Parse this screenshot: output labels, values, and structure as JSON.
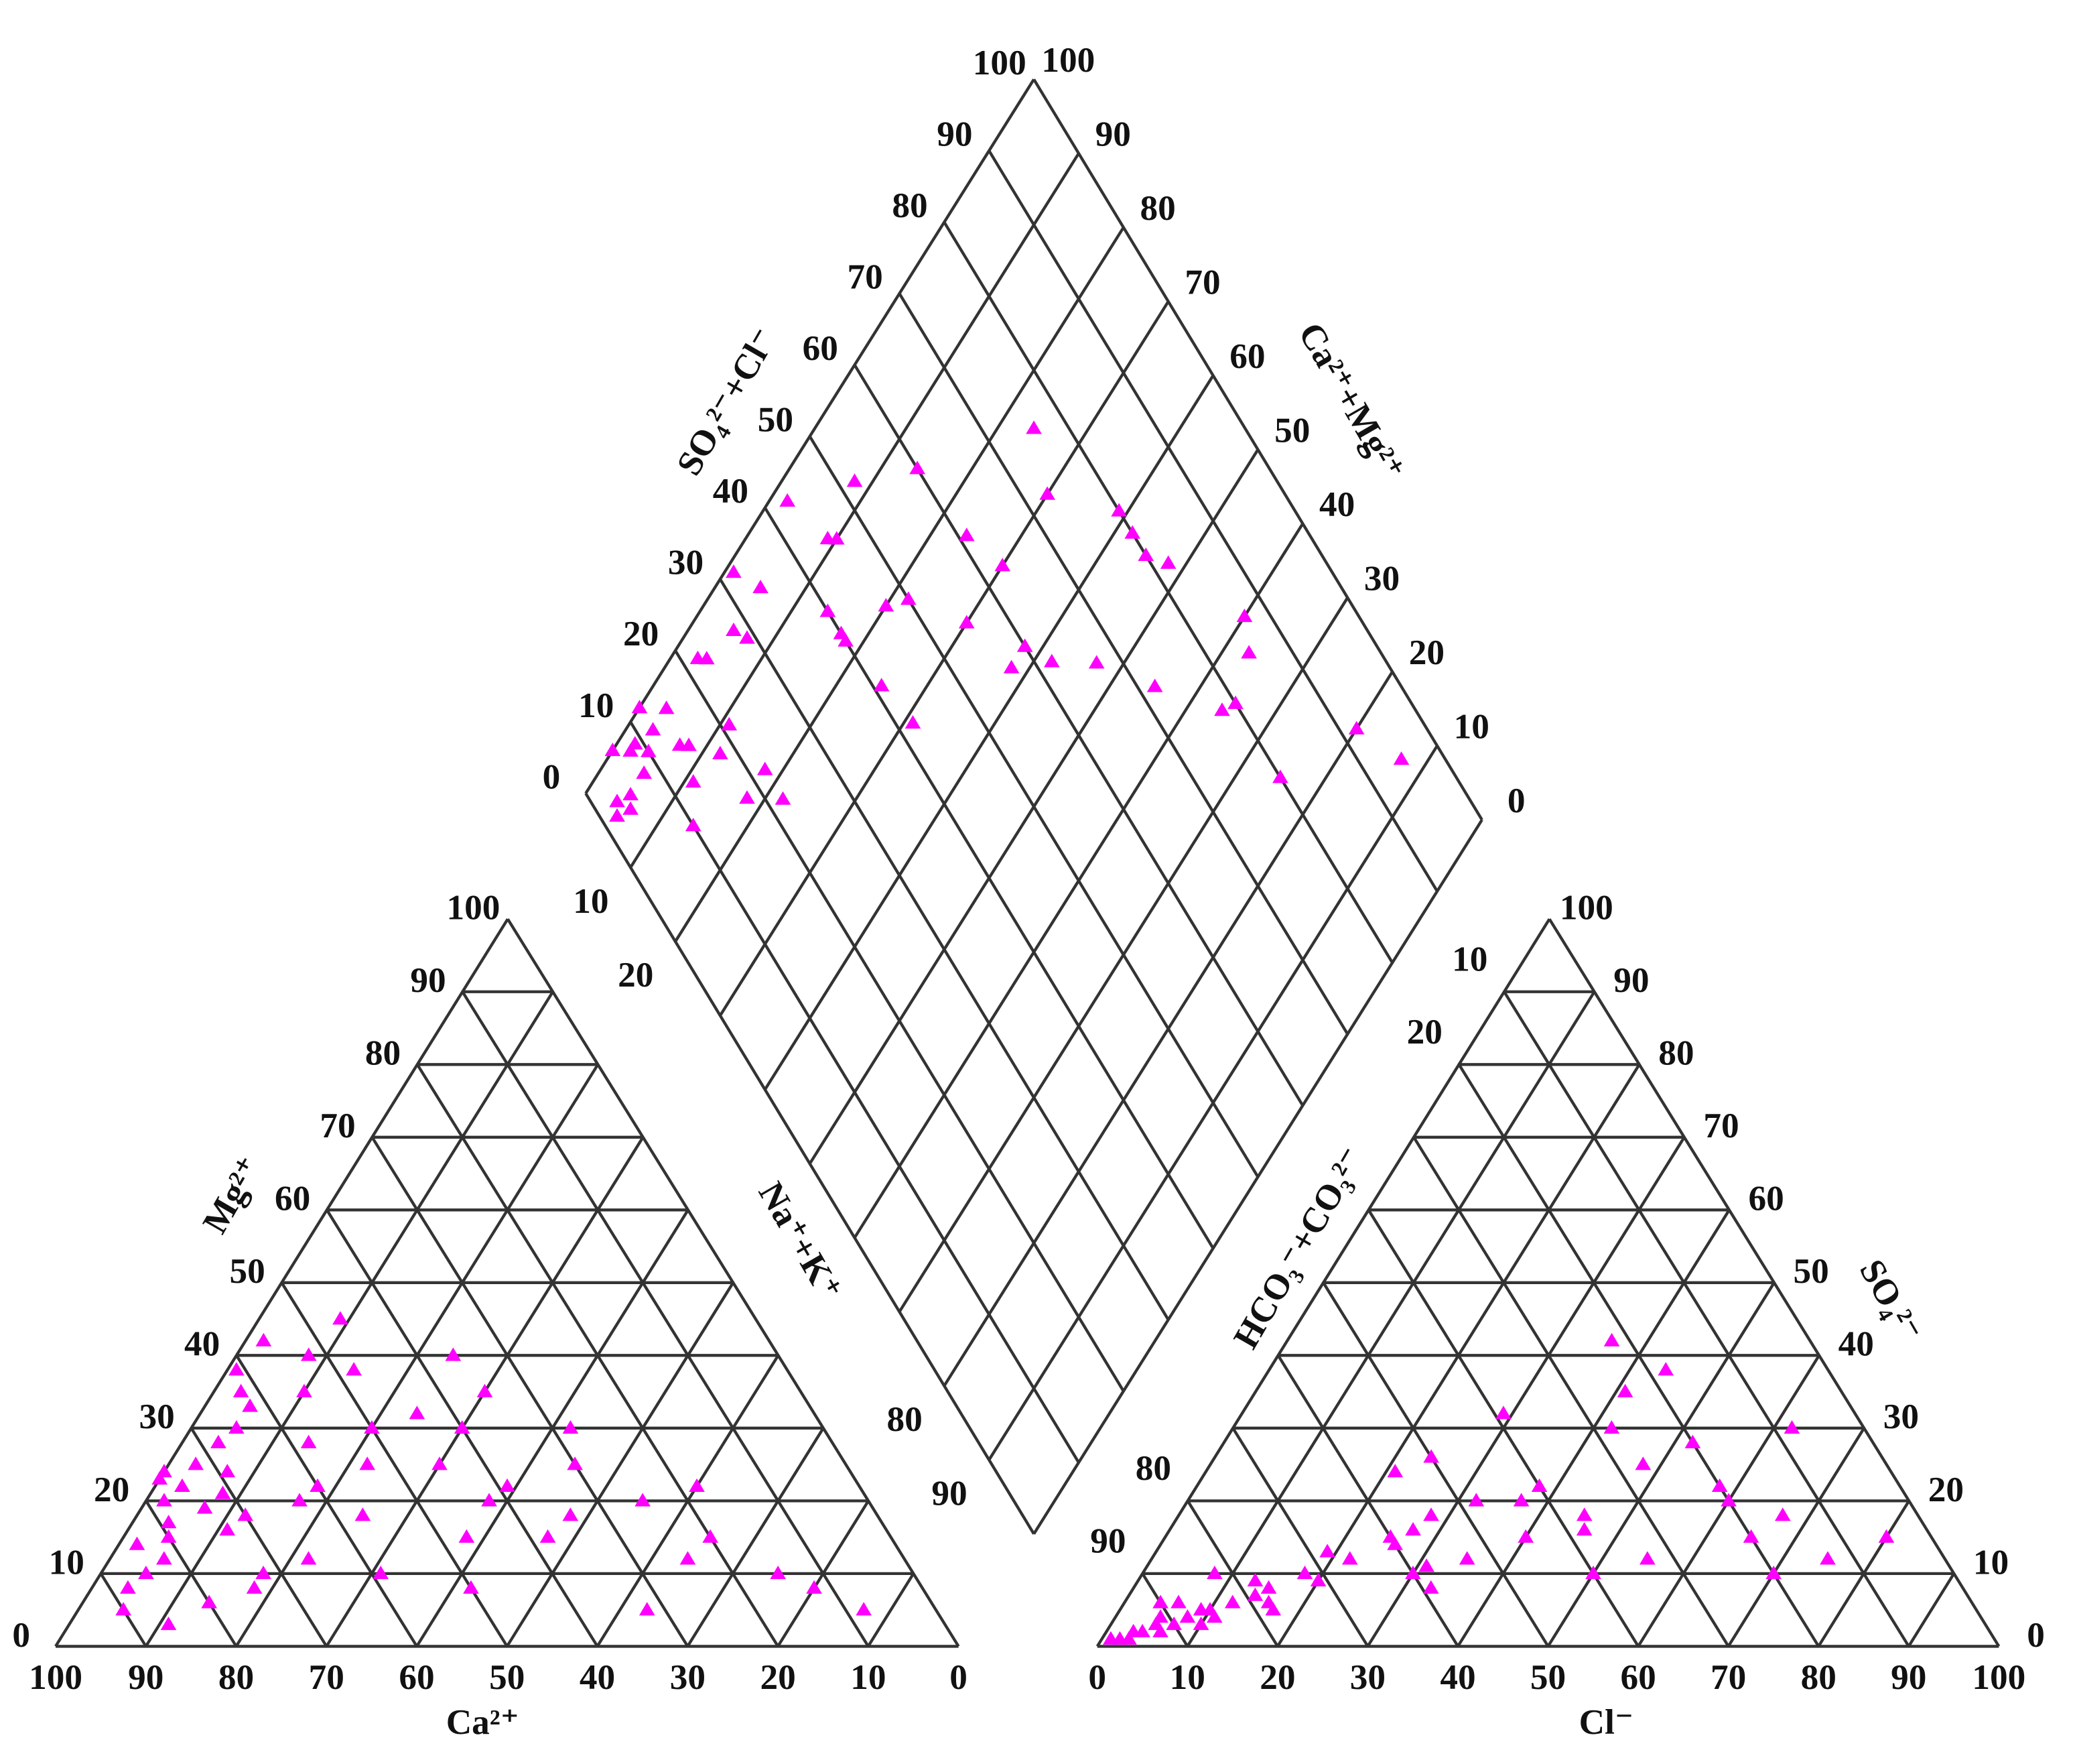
{
  "chart_data": {
    "type": "piper",
    "cation_axes": {
      "bottom": "Ca²⁺",
      "left": "Mg²⁺"
    },
    "anion_axes": {
      "bottom": "Cl⁻",
      "right": "SO₄²⁻",
      "left": "HCO₃⁻+CO₃²⁻"
    },
    "diamond_axes": {
      "upper_left": "SO₄²⁻+Cl⁻",
      "upper_right": "Ca²⁺+Mg²⁺",
      "lower_left": "Na⁺+K⁺"
    },
    "ticks": [
      0,
      10,
      20,
      30,
      40,
      50,
      60,
      70,
      80,
      90,
      100
    ],
    "color": "#ff00ff",
    "samples": {
      "ca": [
        78,
        75,
        80,
        72,
        70,
        76,
        82,
        68,
        74,
        79,
        65,
        71,
        77,
        73,
        69,
        62,
        58,
        60,
        55,
        50,
        52,
        45,
        48,
        40,
        42,
        35,
        38,
        30,
        25,
        20,
        15,
        88,
        85,
        90,
        84,
        66,
        63,
        57,
        53,
        47,
        44,
        39,
        34,
        28,
        24,
        18,
        12,
        8,
        62,
        61,
        56,
        72,
        80,
        46,
        36,
        86,
        74,
        59,
        50,
        32
      ],
      "mg": [
        20,
        22,
        15,
        25,
        18,
        24,
        12,
        28,
        19,
        17,
        30,
        21,
        23,
        16,
        24,
        33,
        28,
        22,
        35,
        30,
        40,
        25,
        38,
        30,
        20,
        35,
        15,
        25,
        20,
        15,
        10,
        8,
        10,
        5,
        14,
        12,
        20,
        18,
        25,
        15,
        32,
        22,
        18,
        30,
        12,
        22,
        8,
        5,
        35,
        38,
        42,
        10,
        6,
        45,
        40,
        3,
        8,
        10,
        8,
        5
      ],
      "cl": [
        5,
        8,
        6,
        10,
        12,
        4,
        3,
        15,
        9,
        7,
        18,
        11,
        6,
        14,
        20,
        22,
        25,
        30,
        28,
        35,
        32,
        40,
        38,
        45,
        50,
        48,
        55,
        60,
        42,
        65,
        70,
        2,
        3,
        1,
        5,
        16,
        26,
        33,
        24,
        37,
        29,
        52,
        44,
        58,
        36,
        75,
        62,
        80,
        13,
        19,
        27,
        8,
        4,
        21,
        41,
        10,
        17,
        31,
        46,
        67
      ],
      "so4": [
        3,
        4,
        2,
        5,
        6,
        2,
        1,
        8,
        5,
        3,
        10,
        4,
        6,
        7,
        9,
        12,
        15,
        10,
        18,
        12,
        20,
        15,
        22,
        18,
        10,
        25,
        12,
        20,
        30,
        15,
        10,
        1,
        2,
        1,
        4,
        6,
        14,
        8,
        26,
        20,
        32,
        28,
        38,
        22,
        42,
        12,
        30,
        15,
        9,
        13,
        16,
        10,
        6,
        24,
        35,
        3,
        5,
        11,
        16,
        18
      ]
    }
  }
}
